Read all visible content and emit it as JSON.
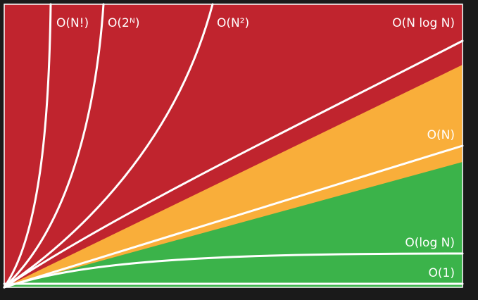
{
  "diagram": {
    "colors": {
      "background": "#1a1a1a",
      "frame": "#ffffff",
      "region_bad": "#c0242e",
      "region_fair": "#f9ae3a",
      "region_good": "#3bb34a",
      "curve": "#ffffff",
      "label": "#ffffff"
    },
    "regions": [
      {
        "name": "bad",
        "color": "#c0242e"
      },
      {
        "name": "fair",
        "color": "#f9ae3a"
      },
      {
        "name": "good",
        "color": "#3bb34a"
      }
    ],
    "curves": [
      {
        "id": "factorial",
        "label": "O(N!)"
      },
      {
        "id": "exponential",
        "label": "O(2ᴺ)"
      },
      {
        "id": "quadratic",
        "label": "O(N²)"
      },
      {
        "id": "nlogn",
        "label": "O(N log N)"
      },
      {
        "id": "linear",
        "label": "O(N)"
      },
      {
        "id": "log",
        "label": "O(log N)"
      },
      {
        "id": "constant",
        "label": "O(1)"
      }
    ]
  }
}
